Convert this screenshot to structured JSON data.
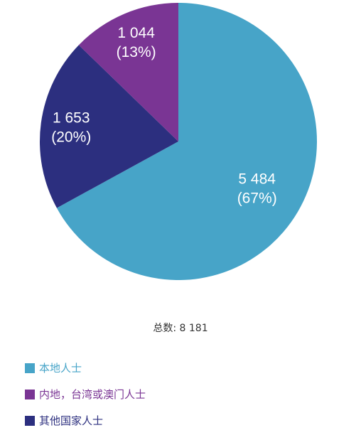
{
  "chart_data": {
    "type": "pie",
    "slices": [
      {
        "name": "本地人士",
        "value": 5484,
        "value_label": "5 484",
        "percent_label": "(67%)",
        "color": "#47a4c8",
        "legend_text_color": "#47a4c8"
      },
      {
        "name": "其他国家人士",
        "value": 1653,
        "value_label": "1 653",
        "percent_label": "(20%)",
        "color": "#2c2f7f",
        "legend_text_color": "#2c2f7f"
      },
      {
        "name": "内地，台湾或澳门人士",
        "value": 1044,
        "value_label": "1 044",
        "percent_label": "(13%)",
        "color": "#7a3594",
        "legend_text_color": "#7a3594"
      }
    ],
    "total_text": "总数: 8 181",
    "legend": {
      "placement": "bottom-left",
      "order": [
        0,
        2,
        1
      ]
    }
  }
}
